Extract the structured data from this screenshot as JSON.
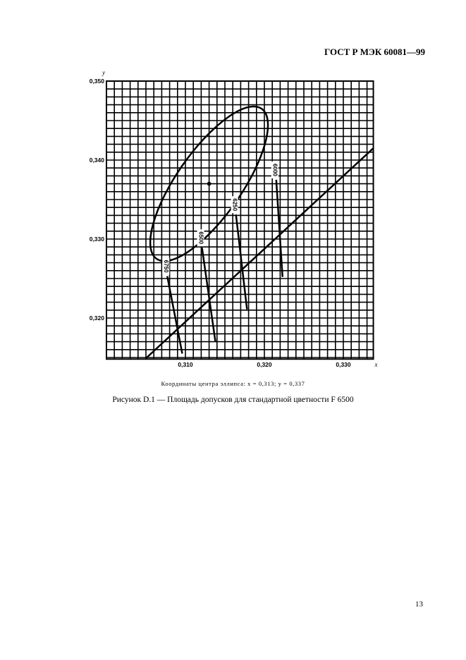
{
  "header": "ГОСТ Р МЭК 60081—99",
  "chart_data": {
    "type": "line",
    "xlabel": "x",
    "ylabel": "y",
    "xlim": [
      0.3,
      0.3338
    ],
    "ylim": [
      0.3148,
      0.35
    ],
    "grid": true,
    "grid_step": 0.001,
    "x_ticks": [
      {
        "value": 0.31,
        "label": "0,310"
      },
      {
        "value": 0.32,
        "label": "0,320"
      },
      {
        "value": 0.33,
        "label": "0,330"
      }
    ],
    "y_ticks": [
      {
        "value": 0.35,
        "label": "0,350"
      },
      {
        "value": 0.34,
        "label": "0,340"
      },
      {
        "value": 0.33,
        "label": "0,330"
      },
      {
        "value": 0.32,
        "label": "0,320"
      }
    ],
    "ellipse": {
      "center": [
        0.313,
        0.337
      ],
      "semi_major": 0.0116,
      "semi_minor": 0.0041,
      "major_axis_angle_deg": 55
    },
    "center_point": [
      0.313,
      0.337
    ],
    "locus_line": {
      "points": [
        [
          0.305,
          0.3149
        ],
        [
          0.3338,
          0.3415
        ]
      ]
    },
    "isotemperature_lines": [
      {
        "label": "6750",
        "points": [
          [
            0.3077,
            0.3253
          ],
          [
            0.3096,
            0.3155
          ]
        ]
      },
      {
        "label": "6500",
        "points": [
          [
            0.3121,
            0.3289
          ],
          [
            0.3138,
            0.317
          ]
        ]
      },
      {
        "label": "6250",
        "points": [
          [
            0.3164,
            0.3331
          ],
          [
            0.3178,
            0.3211
          ]
        ]
      },
      {
        "label": "6000",
        "points": [
          [
            0.3215,
            0.3375
          ],
          [
            0.3223,
            0.3252
          ]
        ]
      }
    ]
  },
  "note": "Координаты центра эллипса: x = 0,313; y = 0,337",
  "caption": "Рисунок D.1 — Площадь допусков для стандартной цветности F 6500",
  "page_number": "13"
}
